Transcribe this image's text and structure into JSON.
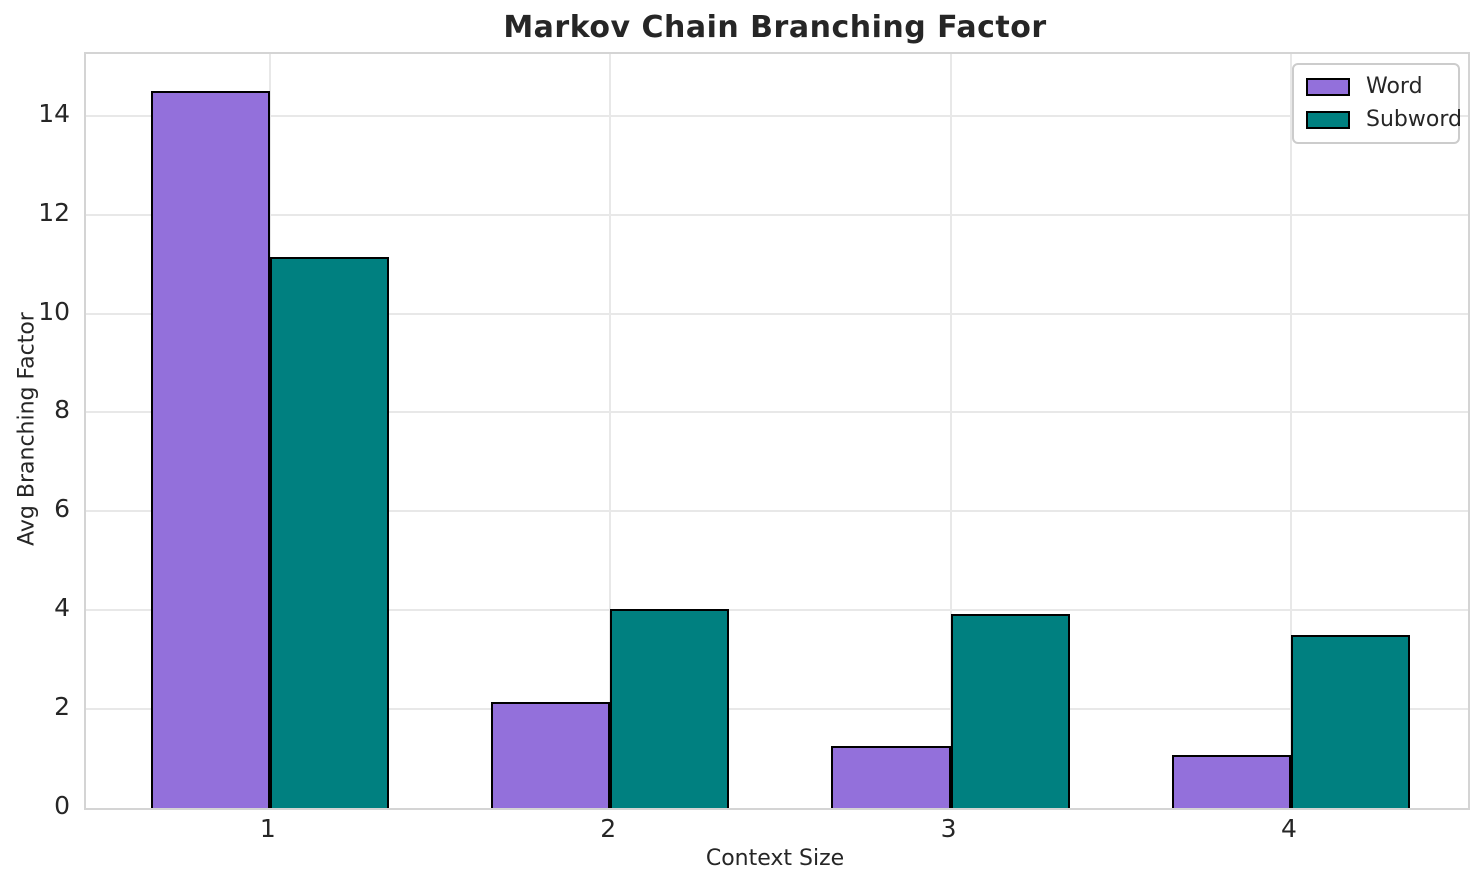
{
  "title": "Markov Chain Branching Factor",
  "chart_data": {
    "type": "bar",
    "title": "Markov Chain Branching Factor",
    "xlabel": "Context Size",
    "ylabel": "Avg Branching Factor",
    "categories": [
      "1",
      "2",
      "3",
      "4"
    ],
    "series": [
      {
        "name": "Word",
        "color": "#9370DB",
        "values": [
          14.5,
          2.15,
          1.25,
          1.07
        ]
      },
      {
        "name": "Subword",
        "color": "#008080",
        "values": [
          11.15,
          4.02,
          3.93,
          3.5
        ]
      }
    ],
    "ylim": [
      0,
      15.25
    ],
    "xlim": [
      0.46,
      4.52
    ],
    "yticks": [
      0,
      2,
      4,
      6,
      8,
      10,
      12,
      14
    ],
    "bar_width_units": 0.35,
    "bar_edge_color": "#000000",
    "grid": true,
    "grid_color": "#e8e8e8",
    "spine_color": "#d4d4d4",
    "text_color": "#262626",
    "legend_position": "upper right"
  }
}
